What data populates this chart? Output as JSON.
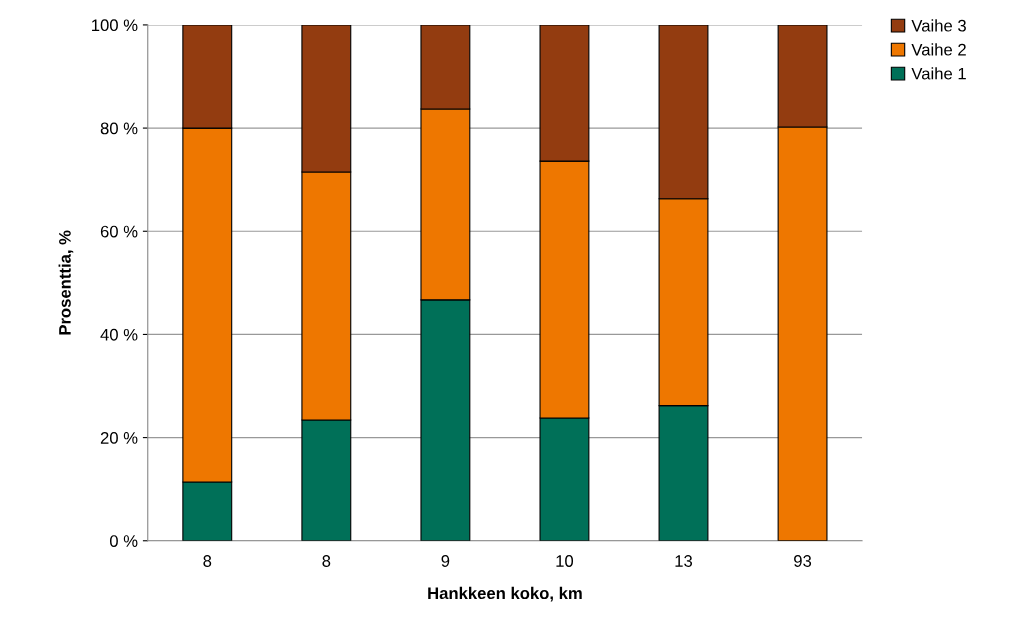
{
  "chart_data": {
    "type": "bar",
    "stacked": true,
    "xlabel": "Hankkeen koko, km",
    "ylabel": "Prosenttia, %",
    "categories": [
      "8",
      "8",
      "9",
      "10",
      "13",
      "93"
    ],
    "series": [
      {
        "name": "Vaihe 1",
        "color": "#007058",
        "values": [
          11.4,
          23.4,
          46.7,
          23.8,
          26.2,
          0
        ]
      },
      {
        "name": "Vaihe 2",
        "color": "#ee7700",
        "values": [
          68.6,
          48.1,
          37.0,
          49.8,
          40.1,
          80.2
        ]
      },
      {
        "name": "Vaihe 3",
        "color": "#933c10",
        "values": [
          20.0,
          28.5,
          16.3,
          26.4,
          33.7,
          19.8
        ]
      }
    ],
    "ylim": [
      0,
      100
    ],
    "yticks": [
      {
        "value": 0,
        "label": "0 %"
      },
      {
        "value": 20,
        "label": "20 %"
      },
      {
        "value": 40,
        "label": "40 %"
      },
      {
        "value": 60,
        "label": "60 %"
      },
      {
        "value": 80,
        "label": "80 %"
      },
      {
        "value": 100,
        "label": "100 %"
      }
    ],
    "grid": "y",
    "legend": "top right"
  }
}
